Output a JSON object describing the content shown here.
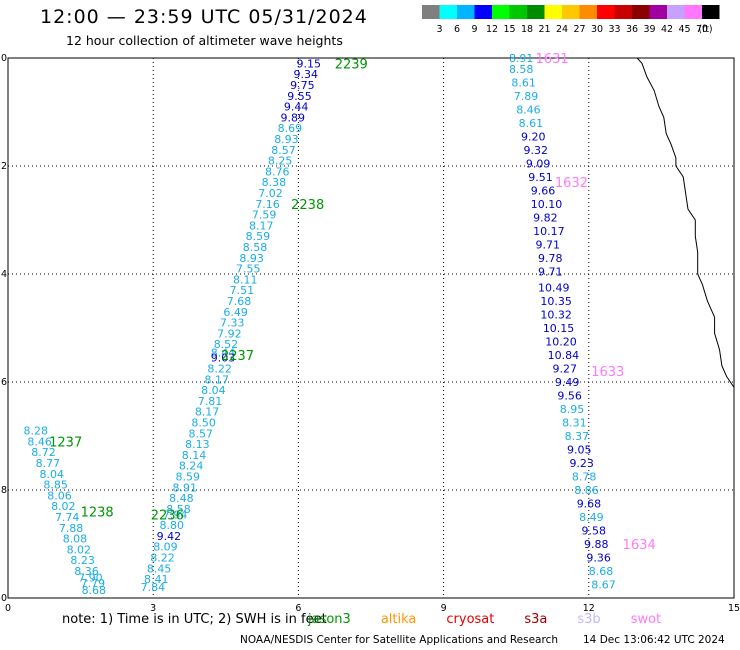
{
  "header": {
    "title": "12:00 — 23:59 UTC 05/31/2024",
    "subtitle": "12 hour collection of altimeter wave heights"
  },
  "legend": {
    "unit": "(ft)",
    "bins": [
      {
        "label": "3",
        "color": "#7f7f7f"
      },
      {
        "label": "6",
        "color": "#00ffff"
      },
      {
        "label": "9",
        "color": "#00b4ff"
      },
      {
        "label": "12",
        "color": "#0000ff"
      },
      {
        "label": "15",
        "color": "#00ff00"
      },
      {
        "label": "18",
        "color": "#00c800"
      },
      {
        "label": "21",
        "color": "#008c00"
      },
      {
        "label": "24",
        "color": "#ffff00"
      },
      {
        "label": "27",
        "color": "#ffc800"
      },
      {
        "label": "30",
        "color": "#ff8c00"
      },
      {
        "label": "33",
        "color": "#ff0000"
      },
      {
        "label": "36",
        "color": "#c80000"
      },
      {
        "label": "39",
        "color": "#8c0000"
      },
      {
        "label": "42",
        "color": "#a000a0"
      },
      {
        "label": "45",
        "color": "#c8a0ff"
      },
      {
        "label": "70",
        "color": "#ff78ff"
      },
      {
        "label": "",
        "color": "#000000"
      }
    ]
  },
  "footer": {
    "note": "note: 1) Time is in UTC; 2) SWH is in feet",
    "satellites": [
      {
        "name": "jason3",
        "color": "#009600"
      },
      {
        "name": "altika",
        "color": "#ff9600"
      },
      {
        "name": "cryosat",
        "color": "#e60000"
      },
      {
        "name": "s3a",
        "color": "#a00000"
      },
      {
        "name": "s3b",
        "color": "#c8b4ff"
      },
      {
        "name": "swot",
        "color": "#ff78ff"
      }
    ],
    "credit": "NOAA/NESDIS Center for Satellite Applications and Research",
    "timestamp": "14 Dec 13:06:42 UTC 2024"
  },
  "chart_data": {
    "type": "scatter",
    "xlim": [
      0,
      15
    ],
    "ylim": [
      -30,
      -20
    ],
    "xticks": [
      "0",
      "3",
      "6",
      "9",
      "12",
      "15"
    ],
    "yticks": [
      "-20",
      "-22",
      "-24",
      "-26",
      "-28",
      "-30"
    ],
    "grid": true,
    "colors": {
      "light": "#1aaee6",
      "dark": "#0000c8",
      "jason": "#009600",
      "swot": "#ff78ff"
    },
    "track_labels": [
      {
        "text": "2239",
        "x": 6.75,
        "y": -20.1,
        "color": "jason"
      },
      {
        "text": "2238",
        "x": 5.85,
        "y": -22.7,
        "color": "jason"
      },
      {
        "text": "2237",
        "x": 4.4,
        "y": -25.5,
        "color": "jason"
      },
      {
        "text": "1237",
        "x": 0.85,
        "y": -27.1,
        "color": "jason"
      },
      {
        "text": "1238",
        "x": 1.5,
        "y": -28.4,
        "color": "jason"
      },
      {
        "text": "2236",
        "x": 2.95,
        "y": -28.45,
        "color": "jason"
      },
      {
        "text": "1631",
        "x": 10.9,
        "y": -20.0,
        "color": "swot"
      },
      {
        "text": "1632",
        "x": 11.3,
        "y": -22.3,
        "color": "swot"
      },
      {
        "text": "1633",
        "x": 12.05,
        "y": -25.8,
        "color": "swot"
      },
      {
        "text": "1634",
        "x": 12.7,
        "y": -29.0,
        "color": "swot"
      }
    ],
    "points": [
      {
        "x": 5.96,
        "y": -20.1,
        "v": "9.15",
        "c": "dark"
      },
      {
        "x": 5.9,
        "y": -20.3,
        "v": "9.34",
        "c": "dark"
      },
      {
        "x": 5.83,
        "y": -20.5,
        "v": "9.75",
        "c": "dark"
      },
      {
        "x": 5.77,
        "y": -20.7,
        "v": "9.55",
        "c": "dark"
      },
      {
        "x": 5.7,
        "y": -20.9,
        "v": "9.44",
        "c": "dark"
      },
      {
        "x": 5.63,
        "y": -21.1,
        "v": "9.89",
        "c": "dark"
      },
      {
        "x": 5.57,
        "y": -21.3,
        "v": "8.69",
        "c": "light"
      },
      {
        "x": 5.5,
        "y": -21.5,
        "v": "8.93",
        "c": "light"
      },
      {
        "x": 5.44,
        "y": -21.7,
        "v": "8.57",
        "c": "light"
      },
      {
        "x": 5.37,
        "y": -21.9,
        "v": "8.25",
        "c": "light"
      },
      {
        "x": 5.31,
        "y": -22.1,
        "v": "8.76",
        "c": "light"
      },
      {
        "x": 5.24,
        "y": -22.3,
        "v": "8.38",
        "c": "light"
      },
      {
        "x": 5.17,
        "y": -22.5,
        "v": "7.02",
        "c": "light"
      },
      {
        "x": 5.11,
        "y": -22.7,
        "v": "7.16",
        "c": "light"
      },
      {
        "x": 5.04,
        "y": -22.9,
        "v": "7.59",
        "c": "light"
      },
      {
        "x": 4.98,
        "y": -23.1,
        "v": "8.17",
        "c": "light"
      },
      {
        "x": 4.91,
        "y": -23.3,
        "v": "8.59",
        "c": "light"
      },
      {
        "x": 4.85,
        "y": -23.5,
        "v": "8.58",
        "c": "light"
      },
      {
        "x": 4.78,
        "y": -23.7,
        "v": "8.93",
        "c": "light"
      },
      {
        "x": 4.71,
        "y": -23.9,
        "v": "7.55",
        "c": "light"
      },
      {
        "x": 4.65,
        "y": -24.1,
        "v": "8.11",
        "c": "light"
      },
      {
        "x": 4.58,
        "y": -24.3,
        "v": "7.51",
        "c": "light"
      },
      {
        "x": 4.52,
        "y": -24.5,
        "v": "7.68",
        "c": "light"
      },
      {
        "x": 4.45,
        "y": -24.7,
        "v": "6.49",
        "c": "light"
      },
      {
        "x": 4.38,
        "y": -24.9,
        "v": "7.33",
        "c": "light"
      },
      {
        "x": 4.32,
        "y": -25.1,
        "v": "7.92",
        "c": "light"
      },
      {
        "x": 4.25,
        "y": -25.3,
        "v": "8.52",
        "c": "light"
      },
      {
        "x": 4.19,
        "y": -25.45,
        "v": "8.44",
        "c": "light"
      },
      {
        "x": 4.19,
        "y": -25.55,
        "v": "9.03",
        "c": "dark"
      },
      {
        "x": 4.12,
        "y": -25.75,
        "v": "8.22",
        "c": "light"
      },
      {
        "x": 4.06,
        "y": -25.95,
        "v": "8.17",
        "c": "light"
      },
      {
        "x": 3.99,
        "y": -26.15,
        "v": "8.04",
        "c": "light"
      },
      {
        "x": 3.92,
        "y": -26.35,
        "v": "7.81",
        "c": "light"
      },
      {
        "x": 3.86,
        "y": -26.55,
        "v": "8.17",
        "c": "light"
      },
      {
        "x": 3.79,
        "y": -26.75,
        "v": "8.50",
        "c": "light"
      },
      {
        "x": 3.73,
        "y": -26.95,
        "v": "8.57",
        "c": "light"
      },
      {
        "x": 3.66,
        "y": -27.15,
        "v": "8.13",
        "c": "light"
      },
      {
        "x": 3.59,
        "y": -27.35,
        "v": "8.14",
        "c": "light"
      },
      {
        "x": 3.53,
        "y": -27.55,
        "v": "8.24",
        "c": "light"
      },
      {
        "x": 3.46,
        "y": -27.75,
        "v": "8.59",
        "c": "light"
      },
      {
        "x": 3.4,
        "y": -27.95,
        "v": "8.91",
        "c": "light"
      },
      {
        "x": 3.33,
        "y": -28.15,
        "v": "8.48",
        "c": "light"
      },
      {
        "x": 3.27,
        "y": -28.35,
        "v": "8.58",
        "c": "light"
      },
      {
        "x": 3.2,
        "y": -28.45,
        "v": "7.94",
        "c": "light"
      },
      {
        "x": 3.13,
        "y": -28.65,
        "v": "8.80",
        "c": "light"
      },
      {
        "x": 3.07,
        "y": -28.85,
        "v": "9.42",
        "c": "dark"
      },
      {
        "x": 3.0,
        "y": -29.05,
        "v": "8.09",
        "c": "light"
      },
      {
        "x": 2.94,
        "y": -29.25,
        "v": "8.22",
        "c": "light"
      },
      {
        "x": 2.87,
        "y": -29.45,
        "v": "8.45",
        "c": "light"
      },
      {
        "x": 2.81,
        "y": -29.65,
        "v": "8.41",
        "c": "light"
      },
      {
        "x": 2.74,
        "y": -29.8,
        "v": "7.84",
        "c": "light"
      },
      {
        "x": 0.32,
        "y": -26.9,
        "v": "8.28",
        "c": "light"
      },
      {
        "x": 0.4,
        "y": -27.1,
        "v": "8.46",
        "c": "light"
      },
      {
        "x": 0.48,
        "y": -27.3,
        "v": "8.72",
        "c": "light"
      },
      {
        "x": 0.57,
        "y": -27.5,
        "v": "8.77",
        "c": "light"
      },
      {
        "x": 0.65,
        "y": -27.7,
        "v": "8.04",
        "c": "light"
      },
      {
        "x": 0.73,
        "y": -27.9,
        "v": "8.85",
        "c": "light"
      },
      {
        "x": 0.81,
        "y": -28.1,
        "v": "8.06",
        "c": "light"
      },
      {
        "x": 0.89,
        "y": -28.3,
        "v": "8.02",
        "c": "light"
      },
      {
        "x": 0.97,
        "y": -28.5,
        "v": "7.74",
        "c": "light"
      },
      {
        "x": 1.05,
        "y": -28.7,
        "v": "7.88",
        "c": "light"
      },
      {
        "x": 1.13,
        "y": -28.9,
        "v": "8.08",
        "c": "light"
      },
      {
        "x": 1.21,
        "y": -29.1,
        "v": "8.02",
        "c": "light"
      },
      {
        "x": 1.29,
        "y": -29.3,
        "v": "8.23",
        "c": "light"
      },
      {
        "x": 1.37,
        "y": -29.5,
        "v": "8.36",
        "c": "light"
      },
      {
        "x": 1.45,
        "y": -29.62,
        "v": "7.90",
        "c": "light"
      },
      {
        "x": 1.5,
        "y": -29.72,
        "v": "7.79",
        "c": "light"
      },
      {
        "x": 1.52,
        "y": -29.85,
        "v": "8.68",
        "c": "light"
      },
      {
        "x": 10.35,
        "y": -20.0,
        "v": "8.91",
        "c": "light"
      },
      {
        "x": 10.35,
        "y": -20.2,
        "v": "8.58",
        "c": "light"
      },
      {
        "x": 10.4,
        "y": -20.45,
        "v": "8.61",
        "c": "light"
      },
      {
        "x": 10.45,
        "y": -20.7,
        "v": "7.89",
        "c": "light"
      },
      {
        "x": 10.5,
        "y": -20.95,
        "v": "8.46",
        "c": "light"
      },
      {
        "x": 10.55,
        "y": -21.2,
        "v": "8.61",
        "c": "light"
      },
      {
        "x": 10.6,
        "y": -21.45,
        "v": "9.20",
        "c": "dark"
      },
      {
        "x": 10.65,
        "y": -21.7,
        "v": "9.32",
        "c": "dark"
      },
      {
        "x": 10.7,
        "y": -21.95,
        "v": "9.09",
        "c": "dark"
      },
      {
        "x": 10.75,
        "y": -22.2,
        "v": "9.51",
        "c": "dark"
      },
      {
        "x": 10.8,
        "y": -22.45,
        "v": "9.66",
        "c": "dark"
      },
      {
        "x": 10.8,
        "y": -22.7,
        "v": "10.10",
        "c": "dark"
      },
      {
        "x": 10.85,
        "y": -22.95,
        "v": "9.82",
        "c": "dark"
      },
      {
        "x": 10.85,
        "y": -23.2,
        "v": "10.17",
        "c": "dark"
      },
      {
        "x": 10.9,
        "y": -23.45,
        "v": "9.71",
        "c": "dark"
      },
      {
        "x": 10.95,
        "y": -23.7,
        "v": "9.78",
        "c": "dark"
      },
      {
        "x": 10.95,
        "y": -23.95,
        "v": "9.71",
        "c": "dark"
      },
      {
        "x": 10.95,
        "y": -24.25,
        "v": "10.49",
        "c": "dark"
      },
      {
        "x": 11.0,
        "y": -24.5,
        "v": "10.35",
        "c": "dark"
      },
      {
        "x": 11.0,
        "y": -24.75,
        "v": "10.32",
        "c": "dark"
      },
      {
        "x": 11.05,
        "y": -25.0,
        "v": "10.15",
        "c": "dark"
      },
      {
        "x": 11.1,
        "y": -25.25,
        "v": "10.20",
        "c": "dark"
      },
      {
        "x": 11.15,
        "y": -25.5,
        "v": "10.84",
        "c": "dark"
      },
      {
        "x": 11.25,
        "y": -25.75,
        "v": "9.27",
        "c": "dark"
      },
      {
        "x": 11.3,
        "y": -26.0,
        "v": "9.49",
        "c": "dark"
      },
      {
        "x": 11.35,
        "y": -26.25,
        "v": "9.56",
        "c": "dark"
      },
      {
        "x": 11.4,
        "y": -26.5,
        "v": "8.95",
        "c": "light"
      },
      {
        "x": 11.45,
        "y": -26.75,
        "v": "8.31",
        "c": "light"
      },
      {
        "x": 11.5,
        "y": -27.0,
        "v": "8.37",
        "c": "light"
      },
      {
        "x": 11.55,
        "y": -27.25,
        "v": "9.05",
        "c": "dark"
      },
      {
        "x": 11.6,
        "y": -27.5,
        "v": "9.23",
        "c": "dark"
      },
      {
        "x": 11.65,
        "y": -27.75,
        "v": "8.78",
        "c": "light"
      },
      {
        "x": 11.7,
        "y": -28.0,
        "v": "8.86",
        "c": "light"
      },
      {
        "x": 11.75,
        "y": -28.25,
        "v": "9.68",
        "c": "dark"
      },
      {
        "x": 11.8,
        "y": -28.5,
        "v": "8.49",
        "c": "light"
      },
      {
        "x": 11.85,
        "y": -28.75,
        "v": "9.58",
        "c": "dark"
      },
      {
        "x": 11.9,
        "y": -29.0,
        "v": "9.88",
        "c": "dark"
      },
      {
        "x": 11.95,
        "y": -29.25,
        "v": "9.36",
        "c": "dark"
      },
      {
        "x": 12.0,
        "y": -29.5,
        "v": "8.68",
        "c": "light"
      },
      {
        "x": 12.05,
        "y": -29.75,
        "v": "8.67",
        "c": "light"
      }
    ],
    "coastline": [
      [
        13.0,
        -20.0
      ],
      [
        13.1,
        -20.1
      ],
      [
        13.2,
        -20.35
      ],
      [
        13.35,
        -20.6
      ],
      [
        13.45,
        -20.9
      ],
      [
        13.55,
        -21.1
      ],
      [
        13.6,
        -21.4
      ],
      [
        13.7,
        -21.6
      ],
      [
        13.8,
        -21.85
      ],
      [
        13.8,
        -22.0
      ],
      [
        13.95,
        -22.2
      ],
      [
        14.0,
        -22.5
      ],
      [
        14.05,
        -22.8
      ],
      [
        14.2,
        -23.0
      ],
      [
        14.2,
        -23.3
      ],
      [
        14.25,
        -23.6
      ],
      [
        14.25,
        -24.0
      ],
      [
        14.35,
        -24.2
      ],
      [
        14.45,
        -24.5
      ],
      [
        14.6,
        -24.8
      ],
      [
        14.6,
        -25.1
      ],
      [
        14.7,
        -25.4
      ],
      [
        14.75,
        -25.7
      ],
      [
        14.85,
        -25.9
      ],
      [
        15.0,
        -26.1
      ]
    ]
  }
}
